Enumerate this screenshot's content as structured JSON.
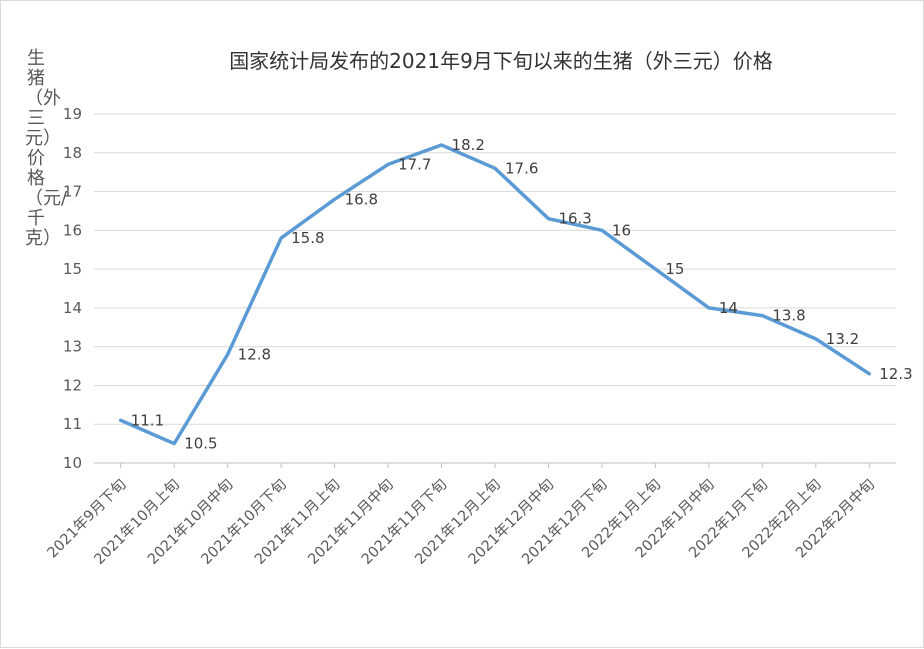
{
  "chart_data": {
    "type": "line",
    "title": "国家统计局发布的2021年9月下旬以来的生猪（外三元）价格",
    "xlabel": "",
    "ylabel": "生猪（外三元）价格（元/千克）",
    "categories": [
      "2021年9月下旬",
      "2021年10月上旬",
      "2021年10月中旬",
      "2021年10月下旬",
      "2021年11月上旬",
      "2021年11月中旬",
      "2021年11月下旬",
      "2021年12月上旬",
      "2021年12月中旬",
      "2021年12月下旬",
      "2022年1月上旬",
      "2022年1月中旬",
      "2022年1月下旬",
      "2022年2月上旬",
      "2022年2月中旬"
    ],
    "series": [
      {
        "values": [
          11.1,
          10.5,
          12.8,
          15.8,
          16.8,
          17.7,
          18.2,
          17.6,
          16.3,
          16,
          15,
          14,
          13.8,
          13.2,
          12.3
        ],
        "labels": [
          "11.1",
          "10.5",
          "12.8",
          "15.8",
          "16.8",
          "17.7",
          "18.2",
          "17.6",
          "16.3",
          "16",
          "15",
          "14",
          "13.8",
          "13.2",
          "12.3"
        ]
      }
    ],
    "ylim": [
      10,
      19
    ],
    "yticks": [
      10,
      11,
      12,
      13,
      14,
      15,
      16,
      17,
      18,
      19
    ],
    "grid": true,
    "legend": "none",
    "line_color": "#5b9bd5",
    "grid_color": "#d9d9d9"
  }
}
